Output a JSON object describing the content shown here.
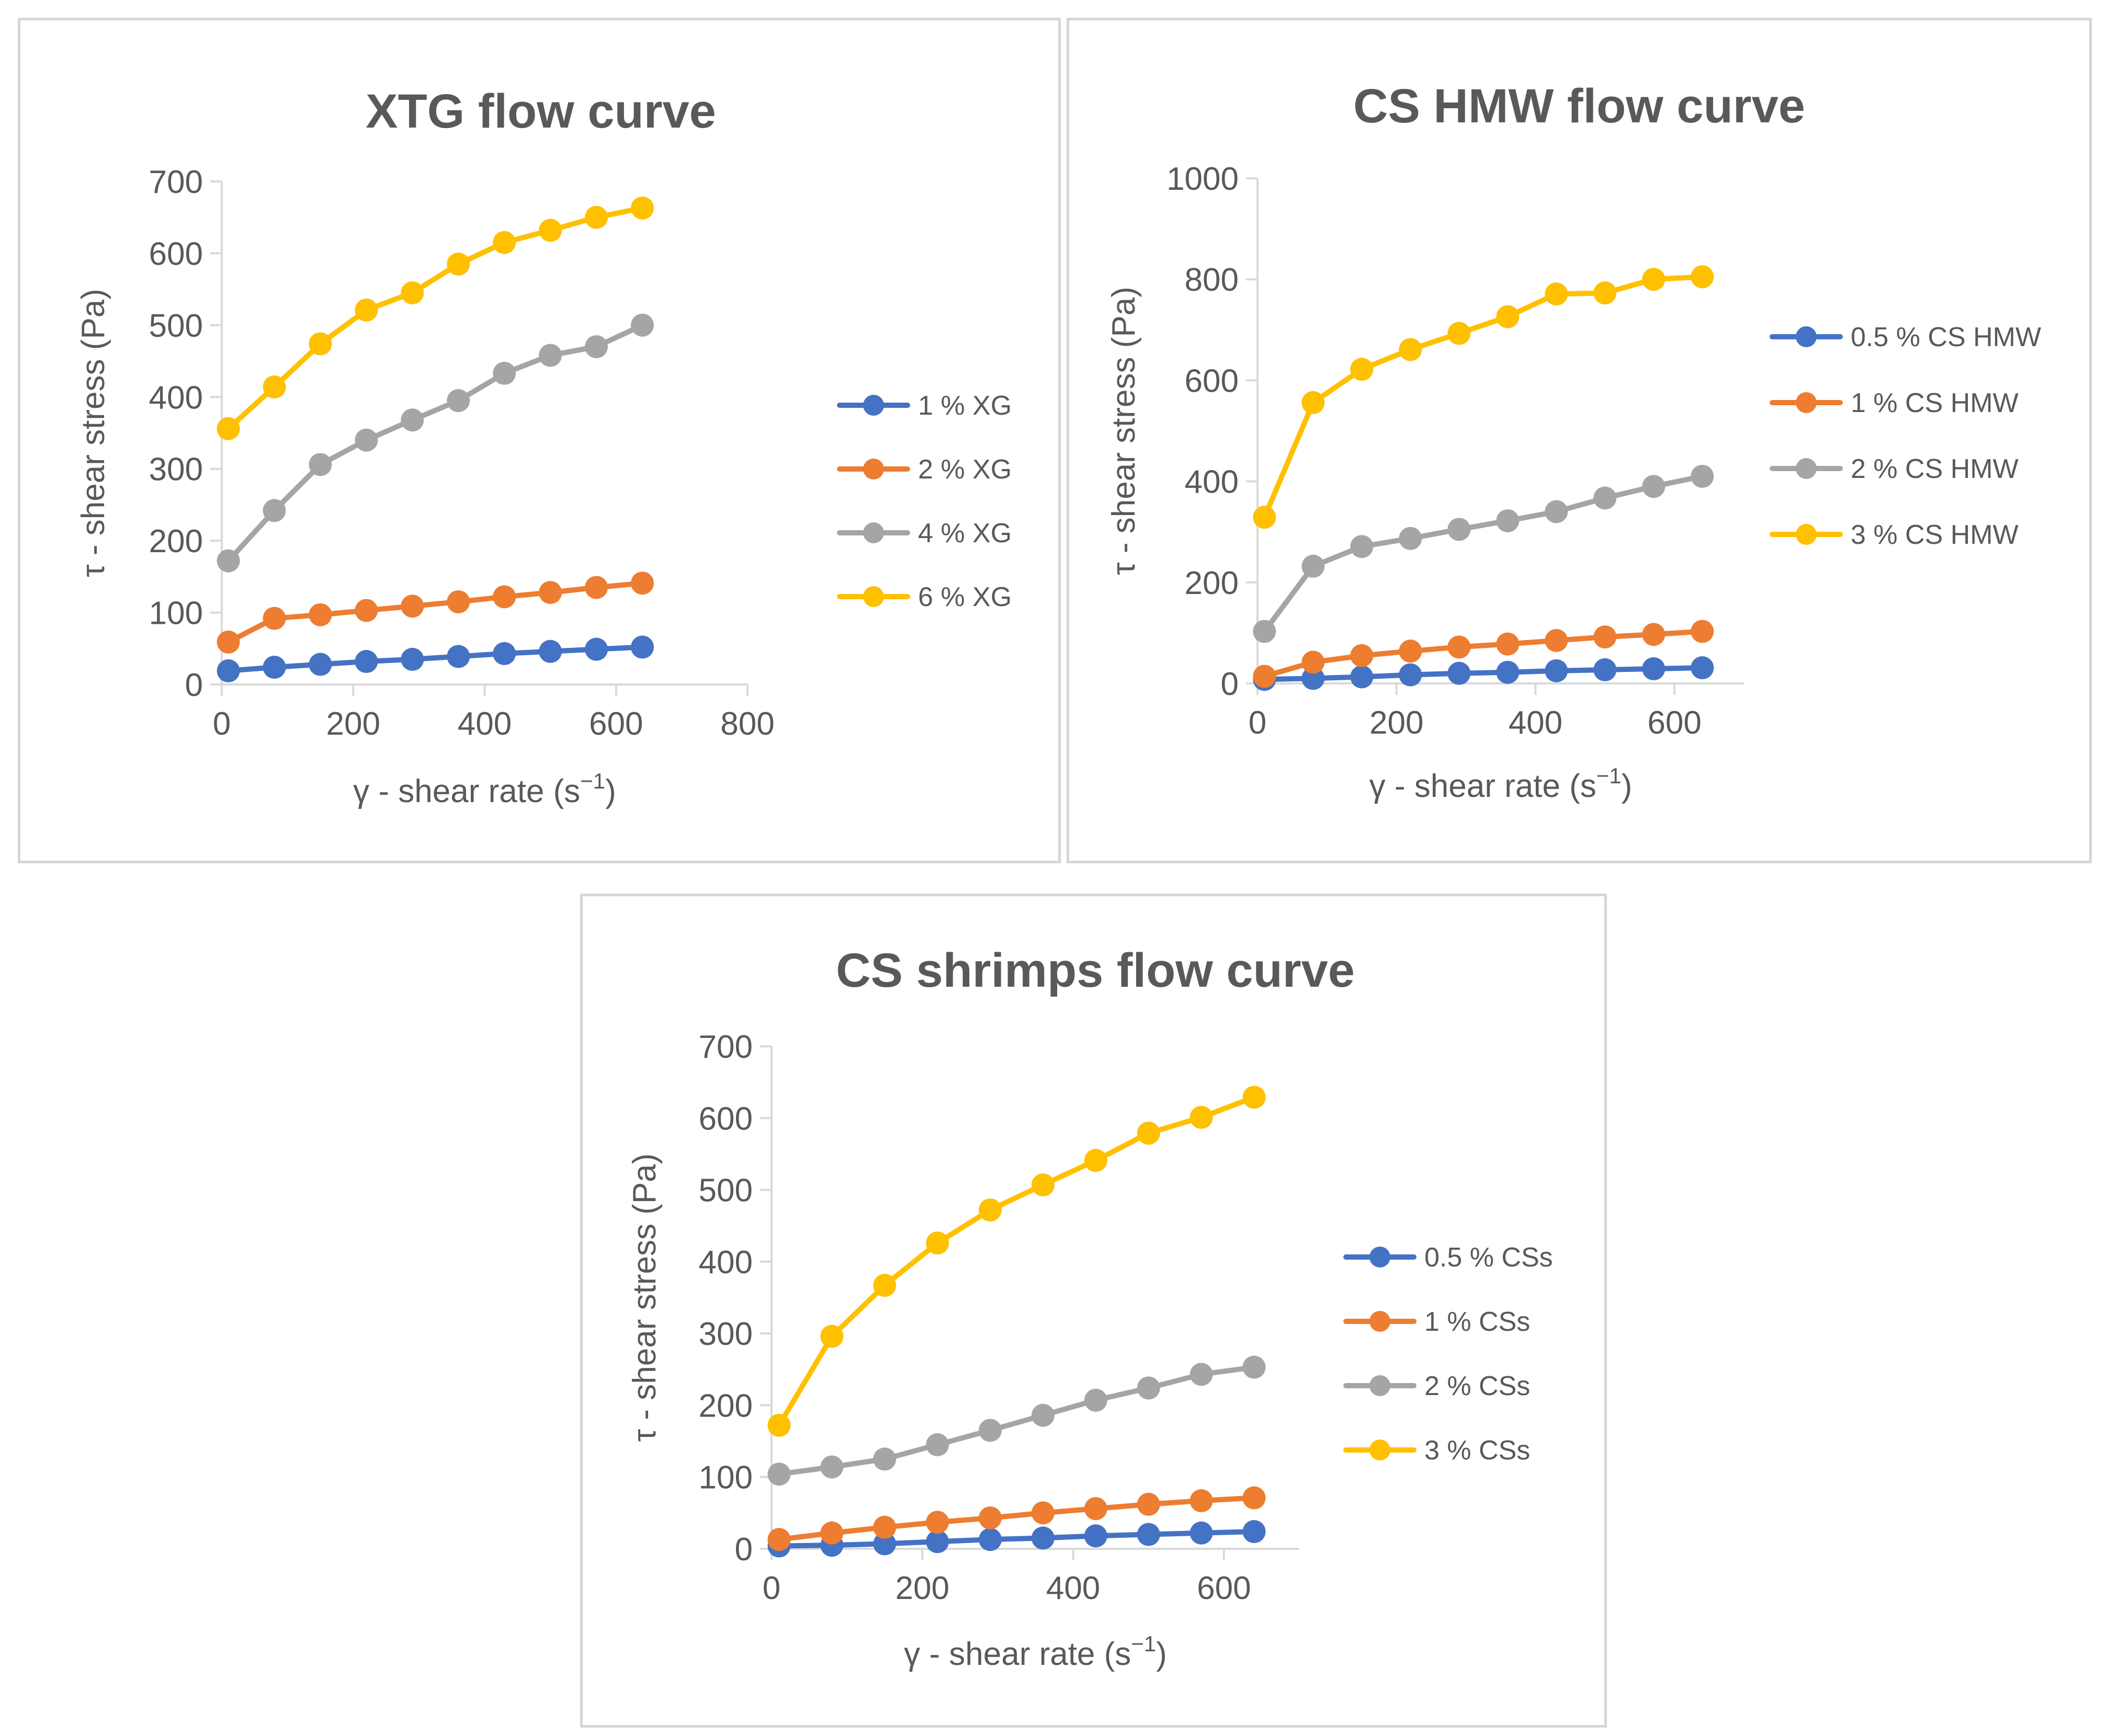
{
  "chart_data": [
    {
      "type": "line",
      "title": "XTG  flow curve",
      "xlabel": "γ - shear rate (s",
      "xlabel_sup": "−1",
      "xlabel_end": ")",
      "ylabel": "τ - shear stress (Pa)",
      "xlim": [
        0,
        800
      ],
      "ylim": [
        0,
        700
      ],
      "xticks": [
        0,
        200,
        400,
        600,
        800
      ],
      "yticks": [
        0,
        100,
        200,
        300,
        400,
        500,
        600,
        700
      ],
      "x": [
        10,
        80,
        150,
        220,
        290,
        360,
        430,
        500,
        570,
        640
      ],
      "series": [
        {
          "name": "1 % XG",
          "color": "#4472C4",
          "values": [
            19,
            24,
            28,
            32,
            35,
            39,
            43,
            46,
            49,
            52
          ]
        },
        {
          "name": "2 % XG",
          "color": "#ED7D31",
          "values": [
            59,
            92,
            97,
            103,
            109,
            115,
            122,
            128,
            135,
            141
          ]
        },
        {
          "name": "4 % XG",
          "color": "#A5A5A5",
          "values": [
            172,
            242,
            306,
            340,
            368,
            395,
            433,
            458,
            470,
            500
          ]
        },
        {
          "name": "6 % XG",
          "color": "#FFC000",
          "values": [
            356,
            414,
            474,
            521,
            545,
            585,
            615,
            632,
            650,
            663
          ]
        }
      ]
    },
    {
      "type": "line",
      "title": "CS HMW flow curve",
      "xlabel": "γ - shear rate (s",
      "xlabel_sup": "−1",
      "xlabel_end": ")",
      "ylabel": "τ - shear stress (Pa)",
      "xlim": [
        0,
        700
      ],
      "ylim": [
        0,
        1000
      ],
      "xticks": [
        0,
        200,
        400,
        600
      ],
      "yticks": [
        0,
        200,
        400,
        600,
        800,
        1000
      ],
      "x": [
        10,
        80,
        150,
        220,
        290,
        360,
        430,
        500,
        570,
        640
      ],
      "series": [
        {
          "name": "0.5 % CS HMW",
          "color": "#4472C4",
          "values": [
            8,
            10,
            13,
            17,
            20,
            22,
            25,
            27,
            29,
            31
          ]
        },
        {
          "name": "1 % CS HMW",
          "color": "#ED7D31",
          "values": [
            14,
            42,
            55,
            64,
            72,
            78,
            85,
            92,
            97,
            103
          ]
        },
        {
          "name": "2 % CS HMW",
          "color": "#A5A5A5",
          "values": [
            103,
            232,
            271,
            287,
            305,
            322,
            340,
            367,
            390,
            410
          ]
        },
        {
          "name": "3 % CS HMW",
          "color": "#FFC000",
          "values": [
            329,
            556,
            622,
            661,
            693,
            726,
            771,
            773,
            800,
            805
          ]
        }
      ]
    },
    {
      "type": "line",
      "title": "CS shrimps flow curve",
      "xlabel": "γ - shear rate (s",
      "xlabel_sup": "−1",
      "xlabel_end": ")",
      "ylabel": "τ - shear stress (Pa)",
      "xlim": [
        0,
        700
      ],
      "ylim": [
        0,
        700
      ],
      "xticks": [
        0,
        200,
        400,
        600
      ],
      "yticks": [
        0,
        100,
        200,
        300,
        400,
        500,
        600,
        700
      ],
      "x": [
        10,
        80,
        150,
        220,
        290,
        360,
        430,
        500,
        570,
        640
      ],
      "series": [
        {
          "name": "0.5 % CSs",
          "color": "#4472C4",
          "values": [
            4,
            5,
            7,
            10,
            13,
            15,
            18,
            20,
            22,
            24
          ]
        },
        {
          "name": "1 % CSs",
          "color": "#ED7D31",
          "values": [
            13,
            22,
            30,
            37,
            43,
            50,
            56,
            62,
            67,
            71
          ]
        },
        {
          "name": "2 % CSs",
          "color": "#A5A5A5",
          "values": [
            104,
            114,
            125,
            145,
            165,
            186,
            207,
            224,
            243,
            253
          ]
        },
        {
          "name": "3 % CSs",
          "color": "#FFC000",
          "values": [
            172,
            296,
            367,
            426,
            472,
            507,
            541,
            579,
            601,
            629
          ]
        }
      ]
    }
  ]
}
